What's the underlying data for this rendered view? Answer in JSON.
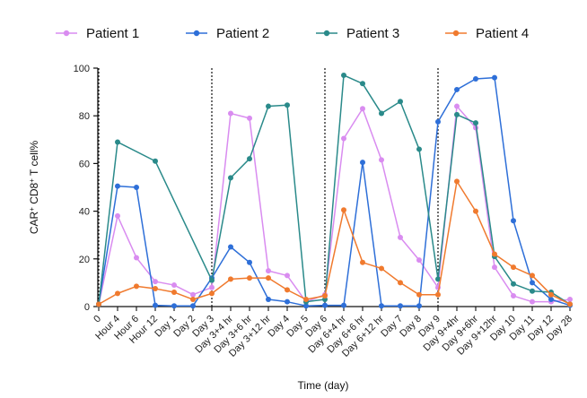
{
  "chart_data": {
    "type": "line",
    "ylabel": "CAR+ CD8+ T cell%",
    "ylabel_parts": {
      "pre": "CAR",
      "sup1": "+",
      "mid": " CD8",
      "sup2": "+",
      "post": " T cell%"
    },
    "xlabel": "Time (day)",
    "ylim": [
      0,
      100
    ],
    "yticks": [
      0,
      20,
      40,
      60,
      80,
      100
    ],
    "grid": false,
    "legend_position": "top",
    "categories": [
      "0",
      "Hour 4",
      "Hour 6",
      "Hour 12",
      "Day 1",
      "Day 2",
      "Day 3",
      "Day 3+4 hr",
      "Day 3+6 hr",
      "Day 3+12 hr",
      "Day 4",
      "Day 5",
      "Day 6",
      "Day 6+4 hr",
      "Day 6+6 hr",
      "Day 6+12 hr",
      "Day 7",
      "Day 8",
      "Day 9",
      "Day 9+4hr",
      "Day 9+6hr",
      "Day 9+12hr",
      "Day 10",
      "Day 11",
      "Day 12",
      "Day 28"
    ],
    "dose_markers": [
      "0",
      "Day 3",
      "Day 6",
      "Day 9"
    ],
    "series": [
      {
        "name": "Patient 1",
        "color": "#d98cf0",
        "values": [
          1,
          38,
          20.5,
          10.5,
          9,
          5,
          8,
          81,
          79,
          15,
          13,
          2,
          5,
          70.5,
          83,
          61.5,
          29,
          19.5,
          8,
          84,
          75,
          16.5,
          4.5,
          2,
          2,
          3
        ]
      },
      {
        "name": "Patient 2",
        "color": "#2e6fd8",
        "values": [
          1,
          50.5,
          50,
          0.5,
          0.3,
          0.3,
          12,
          25,
          18.5,
          3,
          2,
          0.3,
          0.5,
          0.5,
          60.5,
          0.3,
          0.3,
          0.3,
          77.5,
          91,
          95.5,
          96,
          36,
          10,
          3,
          0.5
        ]
      },
      {
        "name": "Patient 3",
        "color": "#2a8a8a",
        "values": [
          1,
          69,
          null,
          61,
          null,
          null,
          11,
          54,
          62,
          84,
          84.5,
          2,
          3,
          97,
          93.5,
          81,
          86,
          66,
          11.5,
          80.5,
          77,
          21,
          9.5,
          6.5,
          6,
          1
        ]
      },
      {
        "name": "Patient 4",
        "color": "#f07a2e",
        "values": [
          1,
          5.5,
          8.5,
          7.5,
          6,
          3,
          5.5,
          11.5,
          12,
          12,
          7,
          3,
          4.5,
          40.5,
          18.5,
          16,
          10,
          5,
          5,
          52.5,
          40,
          22,
          16.5,
          13,
          5,
          1
        ]
      }
    ]
  }
}
